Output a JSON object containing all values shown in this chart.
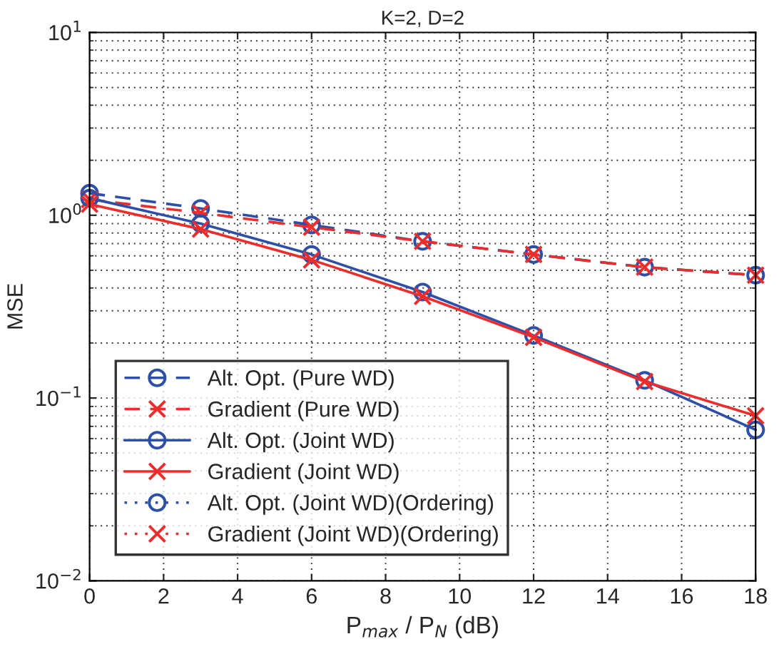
{
  "chart_data": {
    "type": "line",
    "title": "K=2, D=2",
    "xlabel": "P$_{max}$ / P$_{N}$ (dB)",
    "ylabel": "MSE",
    "x": [
      0,
      3,
      6,
      9,
      12,
      15,
      18
    ],
    "series": [
      {
        "name": "Alt. Opt. (Pure WD)",
        "color": "#2e4fa8",
        "marker": "circle",
        "line_style": "dashed",
        "values": [
          1.32,
          1.09,
          0.885,
          0.72,
          0.61,
          0.52,
          0.47
        ]
      },
      {
        "name": "Gradient (Pure WD)",
        "color": "#ee2c2c",
        "marker": "cross",
        "line_style": "dashed",
        "values": [
          1.22,
          1.03,
          0.86,
          0.72,
          0.61,
          0.52,
          0.47
        ]
      },
      {
        "name": "Alt. Opt. (Joint WD)",
        "color": "#2e4fa8",
        "marker": "circle",
        "line_style": "solid",
        "values": [
          1.24,
          0.9,
          0.61,
          0.38,
          0.22,
          0.125,
          0.067
        ]
      },
      {
        "name": "Gradient (Joint WD)",
        "color": "#ee2c2c",
        "marker": "cross",
        "line_style": "solid",
        "values": [
          1.15,
          0.84,
          0.57,
          0.36,
          0.215,
          0.123,
          0.08
        ]
      },
      {
        "name": "Alt. Opt. (Joint WD)(Ordering)",
        "color": "#2e4fa8",
        "marker": "circle",
        "line_style": "dotted",
        "values": [
          null,
          null,
          null,
          null,
          null,
          null,
          null
        ]
      },
      {
        "name": "Gradient (Joint WD)(Ordering)",
        "color": "#ee2c2c",
        "marker": "cross",
        "line_style": "dotted",
        "values": [
          null,
          null,
          null,
          null,
          null,
          null,
          null
        ]
      }
    ],
    "log": "y",
    "xlim": [
      0,
      18
    ],
    "xticks": [
      0,
      2,
      4,
      6,
      8,
      10,
      12,
      14,
      16,
      18
    ],
    "ylim": [
      0.01,
      10
    ],
    "yticks": [
      {
        "value": 0.01,
        "label": "10$^{−2}$"
      },
      {
        "value": 0.1,
        "label": "10$^{−1}$"
      },
      {
        "value": 1,
        "label": "10$^{0}$"
      },
      {
        "value": 10,
        "label": "10$^{1}$"
      }
    ],
    "grid": true,
    "legend": "bottom left"
  }
}
